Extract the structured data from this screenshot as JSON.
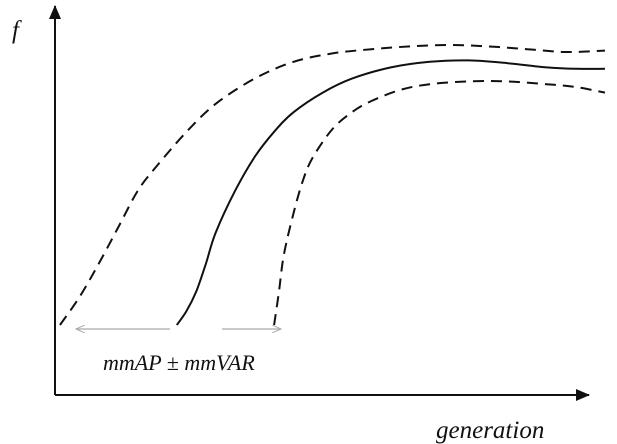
{
  "chart_data": {
    "type": "line",
    "title": "",
    "xlabel": "generation",
    "ylabel": "f",
    "grid": false,
    "legend": "none",
    "annotation": "mmAP ± mmVAR",
    "series": [
      {
        "style": "dashed",
        "role": "upper-bound",
        "x": [
          0,
          2,
          4,
          6,
          8,
          10,
          13,
          16,
          20,
          24,
          28,
          32,
          36,
          40,
          44,
          48,
          52,
          56
        ],
        "y": [
          0,
          10,
          22,
          35,
          48,
          57,
          69,
          79,
          88,
          94,
          97,
          98.5,
          99.5,
          100,
          99.5,
          98.5,
          97.5,
          98
        ]
      },
      {
        "style": "solid",
        "role": "mean",
        "x": [
          12,
          13,
          14,
          15,
          16,
          18,
          20,
          22,
          24,
          27,
          30,
          34,
          38,
          42,
          46,
          50,
          53,
          56
        ],
        "y": [
          0,
          5,
          12,
          22,
          33,
          48,
          60,
          69,
          76,
          83,
          88,
          92,
          94,
          94.5,
          93.5,
          92,
          91.5,
          91.5
        ]
      },
      {
        "style": "dashed",
        "role": "lower-bound",
        "x": [
          22,
          22.5,
          23,
          24,
          25,
          26,
          28,
          30,
          32,
          35,
          38,
          42,
          46,
          50,
          53,
          56
        ],
        "y": [
          0,
          12,
          25,
          40,
          52,
          60,
          70,
          76,
          80,
          84,
          86,
          87,
          87,
          86,
          85,
          83
        ]
      }
    ],
    "colors": {
      "curves": "#111111",
      "arrows": "#aaaaaa",
      "axes": "#111111"
    }
  }
}
